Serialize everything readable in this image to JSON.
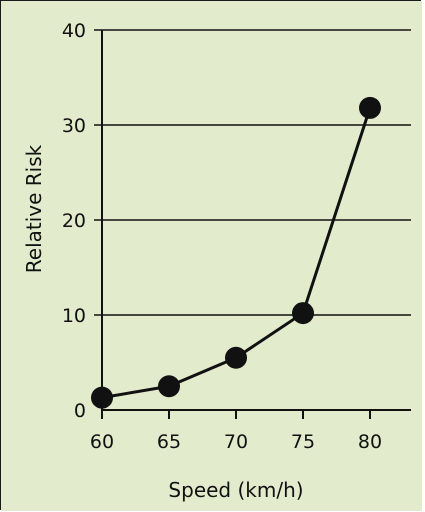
{
  "chart_data": {
    "type": "line",
    "title": "",
    "xlabel": "Speed (km/h)",
    "ylabel": "Relative Risk",
    "x": [
      60,
      65,
      70,
      75,
      80
    ],
    "series": [
      {
        "values": [
          1.3,
          2.5,
          5.5,
          10.2,
          31.8
        ]
      }
    ],
    "xticks": [
      "60",
      "65",
      "70",
      "75",
      "80"
    ],
    "yticks": [
      "0",
      "10",
      "20",
      "30",
      "40"
    ],
    "xlim": [
      60,
      80
    ],
    "ylim": [
      0,
      40
    ],
    "grid": "horizontal",
    "legend": "none"
  },
  "colors": {
    "background": "#e3ebcd",
    "line": "#111111",
    "marker": "#111111",
    "grid": "#111111"
  }
}
